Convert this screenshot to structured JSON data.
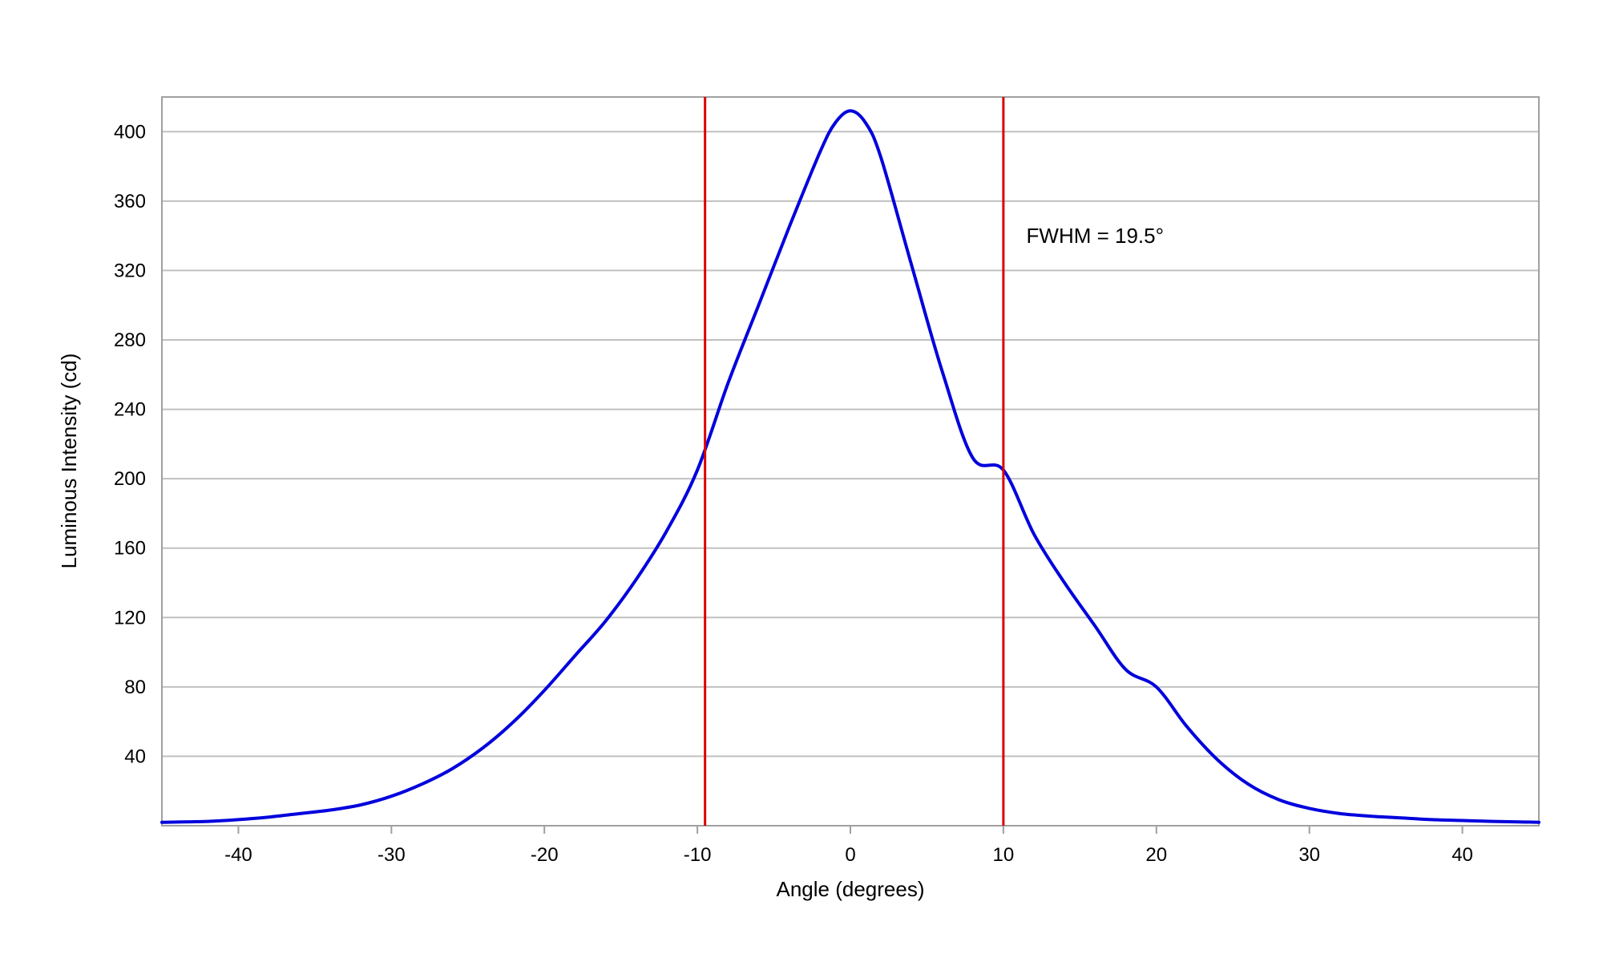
{
  "chart_data": {
    "type": "line",
    "title": "",
    "xlabel": "Angle (degrees)",
    "ylabel": "Luminous Intensity (cd)",
    "xlim": [
      -45,
      45
    ],
    "ylim": [
      0,
      420
    ],
    "xticks": [
      -40,
      -30,
      -20,
      -10,
      0,
      10,
      20,
      30,
      40
    ],
    "xtick_labels": [
      "-40",
      "-30",
      "-20",
      "-10",
      "0",
      "10",
      "20",
      "30",
      "40"
    ],
    "yticks": [
      40,
      80,
      120,
      160,
      200,
      240,
      280,
      320,
      360,
      400
    ],
    "ytick_labels": [
      "40",
      "80",
      "120",
      "160",
      "200",
      "240",
      "280",
      "320",
      "360",
      "400"
    ],
    "grid": "horizontal",
    "colors": {
      "series": "#0000dd",
      "markers": "#dd0000",
      "grid": "#c0c0c0",
      "frame": "#a0a0a0"
    },
    "series": [
      {
        "x": [
          -45,
          -42,
          -40,
          -38,
          -36,
          -34,
          -32,
          -30,
          -28,
          -26,
          -24,
          -22,
          -20,
          -18,
          -16,
          -14,
          -12,
          -10,
          -8,
          -6,
          -4,
          -2,
          -1,
          0,
          1,
          2,
          4,
          6,
          8,
          10,
          12,
          14,
          16,
          18,
          20,
          22,
          24,
          26,
          28,
          30,
          32,
          34,
          36,
          38,
          40,
          42,
          45
        ],
        "y": [
          2,
          2.5,
          3.5,
          5,
          7,
          9,
          12,
          17,
          24,
          33,
          45,
          60,
          78,
          98,
          118,
          142,
          170,
          205,
          255,
          300,
          345,
          388,
          405,
          412,
          405,
          385,
          323,
          262,
          212,
          205,
          168,
          140,
          115,
          90,
          80,
          57,
          38,
          24,
          15,
          10,
          7,
          5.5,
          4.5,
          3.5,
          3,
          2.5,
          2
        ]
      }
    ],
    "reference_lines": [
      {
        "axis": "x",
        "value": -9.5
      },
      {
        "axis": "x",
        "value": 10
      }
    ],
    "annotations": [
      {
        "text": "FWHM = 19.5°",
        "x": 11.5,
        "y": 340
      }
    ]
  }
}
